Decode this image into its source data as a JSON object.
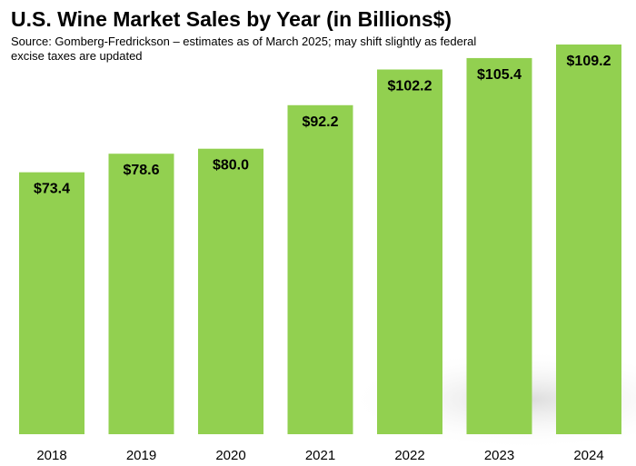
{
  "chart_data": {
    "type": "bar",
    "title": "U.S. Wine Market Sales by Year (in Billions$)",
    "subtitle": "Source: Gomberg-Fredrickson – estimates as of  March 2025; may shift slightly as federal excise taxes are updated",
    "categories": [
      "2018",
      "2019",
      "2020",
      "2021",
      "2022",
      "2023",
      "2024"
    ],
    "values": [
      73.4,
      78.6,
      80.0,
      92.2,
      102.2,
      105.4,
      109.2
    ],
    "data_labels": [
      "$73.4",
      "$78.6",
      "$80.0",
      "$92.2",
      "$102.2",
      "$105.4",
      "$109.2"
    ],
    "xlabel": "",
    "ylabel": "",
    "ylim": [
      0,
      109.2
    ],
    "grid": false,
    "legend": "none",
    "bar_color": "#92d050"
  }
}
